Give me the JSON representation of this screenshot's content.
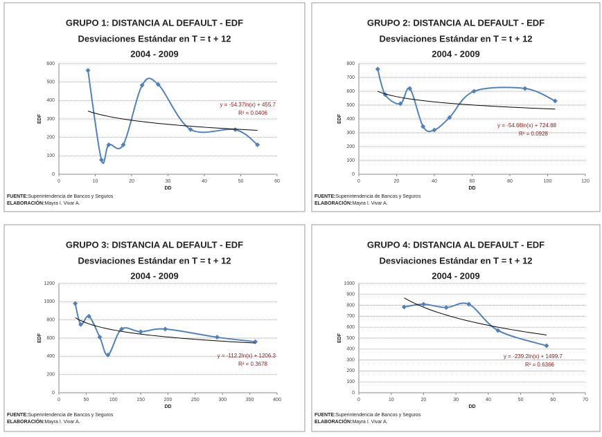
{
  "chart_data": [
    {
      "type": "scatter-smooth",
      "title": "GRUPO 1: DISTANCIA AL DEFAULT - EDF",
      "subtitle": "Desviaciones Estándar  en  T = t + 12",
      "period": "2004 - 2009",
      "x_label": "DD",
      "y_label": "EDF",
      "color": "#4f81bd",
      "x": [
        8,
        11.7,
        13.7,
        17.7,
        22.9,
        27.3,
        36.2,
        48.5,
        54.6
      ],
      "values": [
        563,
        78,
        160,
        160,
        483,
        487,
        243,
        242,
        160
      ],
      "xlim": [
        0,
        60
      ],
      "xticks": [
        0,
        10,
        20,
        30,
        40,
        50,
        60
      ],
      "ylim": [
        0,
        600
      ],
      "yticks": [
        0,
        100,
        200,
        300,
        400,
        500,
        600
      ],
      "grid": true,
      "trendline": {
        "a": -54.37,
        "b": 455.7,
        "label": "y = -54.37ln(x) + 455.7",
        "r2_label": "R² = 0.0406"
      },
      "source": "FUENTE:",
      "source_text": "Superintendencia  de Bancos y Seguros",
      "author": "ELABORACIÓN:",
      "author_text": "Mayra I. Vivar A."
    },
    {
      "type": "scatter-smooth",
      "title": "GRUPO 2: DISTANCIA AL DEFAULT - EDF",
      "subtitle": "Desviaciones Estándar  en  T = t + 12",
      "period": "2004 - 2009",
      "x_label": "DD",
      "y_label": "EDF",
      "color": "#4f81bd",
      "x": [
        10,
        14,
        22,
        27,
        34,
        40,
        48,
        61,
        88,
        104
      ],
      "values": [
        760,
        575,
        510,
        620,
        345,
        320,
        410,
        600,
        620,
        530
      ],
      "xlim": [
        0,
        120
      ],
      "xticks": [
        0,
        20,
        40,
        60,
        80,
        100,
        120
      ],
      "ylim": [
        0,
        800
      ],
      "yticks": [
        0,
        100,
        200,
        300,
        400,
        500,
        600,
        700,
        800
      ],
      "grid": true,
      "trendline": {
        "a": -54.66,
        "b": 724.88,
        "label": "y = -54.66ln(x) + 724.88",
        "r2_label": "R² = 0.0928"
      },
      "source": "FUENTE:",
      "source_text": "Superintendencia  de Bancos y Seguros",
      "author": "ELABORACIÓN:",
      "author_text": "Mayra I. Vivar A."
    },
    {
      "type": "scatter-smooth",
      "title": "GRUPO 3: DISTANCIA AL DEFAULT - EDF",
      "subtitle": "Desviaciones Estándar  en  T = t + 12",
      "period": "2004 - 2009",
      "x_label": "DD",
      "y_label": "EDF",
      "color": "#4f81bd",
      "x": [
        30,
        40,
        55,
        75,
        90,
        115,
        150,
        195,
        290,
        360
      ],
      "values": [
        980,
        750,
        840,
        610,
        415,
        700,
        670,
        700,
        610,
        560
      ],
      "xlim": [
        0,
        400
      ],
      "xticks": [
        0,
        50,
        100,
        150,
        200,
        250,
        300,
        350,
        400
      ],
      "ylim": [
        0,
        1200
      ],
      "yticks": [
        0,
        200,
        400,
        600,
        800,
        1000,
        1200
      ],
      "grid": true,
      "trendline": {
        "a": -112.2,
        "b": 1206.3,
        "label": "y = -112.2ln(x) + 1206.3",
        "r2_label": "R² = 0.3678"
      },
      "source": "FUENTE:",
      "source_text": "Superintendencia  de Bancos y Seguros",
      "author": "ELABORACIÓN:",
      "author_text": "Mayra I. Vivar A."
    },
    {
      "type": "scatter-smooth",
      "title": "GRUPO 4: DISTANCIA AL DEFAULT - EDF",
      "subtitle": "Desviaciones Estándar  en  T = t + 12",
      "period": "2004 - 2009",
      "x_label": "DD",
      "y_label": "EDF",
      "color": "#4f81bd",
      "x": [
        14,
        20,
        27,
        34,
        43,
        58
      ],
      "values": [
        785,
        810,
        780,
        810,
        570,
        430
      ],
      "xlim": [
        0,
        70
      ],
      "xticks": [
        0,
        10,
        20,
        30,
        40,
        50,
        60,
        70
      ],
      "ylim": [
        0,
        1000
      ],
      "yticks": [
        0,
        100,
        200,
        300,
        400,
        500,
        600,
        700,
        800,
        900,
        1000
      ],
      "grid": true,
      "trendline": {
        "a": -239.2,
        "b": 1499.7,
        "label": "y = -239.2ln(x) + 1499.7",
        "r2_label": "R² = 0.6366"
      },
      "source": "FUENTE:",
      "source_text": "Superintendencia  de Bancos y Seguros",
      "author": "ELABORACIÓN:",
      "author_text": "Mayra I. Vivar A."
    }
  ]
}
